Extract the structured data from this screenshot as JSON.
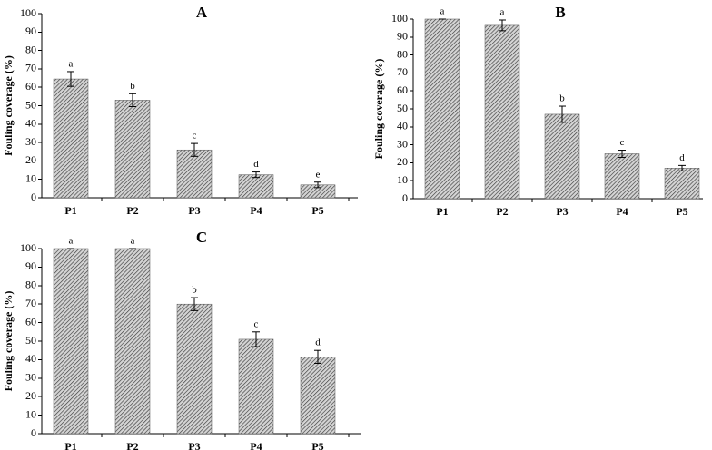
{
  "chart_data": [
    {
      "type": "bar",
      "title": "A",
      "ylabel": "Fouling coverage (%)",
      "categories": [
        "P1",
        "P2",
        "P3",
        "P4",
        "P5"
      ],
      "values": [
        64.5,
        53,
        26,
        12.5,
        7
      ],
      "errors": [
        4,
        3.5,
        3.5,
        1.5,
        1.5
      ],
      "significance": [
        "a",
        "b",
        "c",
        "d",
        "e"
      ],
      "ylim": [
        0,
        100
      ],
      "yticks": [
        0,
        10,
        20,
        30,
        40,
        50,
        60,
        70,
        80,
        90,
        100
      ]
    },
    {
      "type": "bar",
      "title": "B",
      "ylabel": "Fouling coverage (%)",
      "categories": [
        "P1",
        "P2",
        "P3",
        "P4",
        "P5"
      ],
      "values": [
        100,
        96.5,
        47,
        25,
        17
      ],
      "errors": [
        0,
        3,
        4.5,
        2,
        1.5
      ],
      "significance": [
        "a",
        "a",
        "b",
        "c",
        "d"
      ],
      "ylim": [
        0,
        100
      ],
      "yticks": [
        0,
        10,
        20,
        30,
        40,
        50,
        60,
        70,
        80,
        90,
        100
      ]
    },
    {
      "type": "bar",
      "title": "C",
      "ylabel": "Fouling coverage (%)",
      "categories": [
        "P1",
        "P2",
        "P3",
        "P4",
        "P5"
      ],
      "values": [
        100,
        100,
        70,
        51,
        41.5
      ],
      "errors": [
        0,
        0,
        3.5,
        4,
        3.5
      ],
      "significance": [
        "a",
        "a",
        "b",
        "c",
        "d"
      ],
      "ylim": [
        0,
        100
      ],
      "yticks": [
        0,
        10,
        20,
        30,
        40,
        50,
        60,
        70,
        80,
        90,
        100
      ]
    }
  ]
}
